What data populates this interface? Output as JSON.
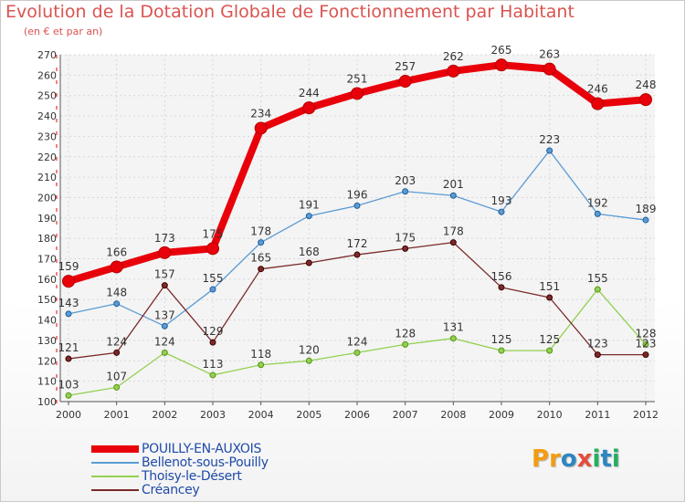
{
  "title": "Evolution de la Dotation Globale de Fonctionnement par Habitant",
  "subtitle": "(en € et par an)",
  "logo": {
    "text": "Proxiti",
    "letters": [
      {
        "ch": "P",
        "color": "#f39c12"
      },
      {
        "ch": "r",
        "color": "#f39c12"
      },
      {
        "ch": "o",
        "color": "#2e86c1"
      },
      {
        "ch": "x",
        "color": "#e74c3c"
      },
      {
        "ch": "i",
        "color": "#27ae60"
      },
      {
        "ch": "t",
        "color": "#2e86c1"
      },
      {
        "ch": "i",
        "color": "#27ae60"
      }
    ]
  },
  "chart_data": {
    "type": "line",
    "title": "Evolution de la Dotation Globale de Fonctionnement par Habitant",
    "subtitle": "(en € et par an)",
    "xlabel": "",
    "ylabel": "",
    "categories": [
      "2000",
      "2001",
      "2002",
      "2003",
      "2004",
      "2005",
      "2006",
      "2007",
      "2008",
      "2009",
      "2010",
      "2011",
      "2012"
    ],
    "ylim": [
      100,
      270
    ],
    "yticks": [
      100,
      110,
      120,
      130,
      140,
      150,
      160,
      170,
      180,
      190,
      200,
      210,
      220,
      230,
      240,
      250,
      260,
      270
    ],
    "grid": true,
    "legend_position": "bottom-left",
    "series": [
      {
        "name": "POUILLY-EN-AUXOIS",
        "color": "#e8000b",
        "emphasis": true,
        "values": [
          159,
          166,
          173,
          175,
          234,
          244,
          251,
          257,
          262,
          265,
          263,
          246,
          248
        ]
      },
      {
        "name": "Bellenot-sous-Pouilly",
        "color": "#5b9bd5",
        "emphasis": false,
        "values": [
          143,
          148,
          137,
          155,
          178,
          191,
          196,
          203,
          201,
          193,
          223,
          192,
          189
        ]
      },
      {
        "name": "Thoisy-le-Désert",
        "color": "#92d050",
        "emphasis": false,
        "values": [
          103,
          107,
          124,
          113,
          118,
          120,
          124,
          128,
          131,
          125,
          125,
          155,
          128
        ]
      },
      {
        "name": "Créancey",
        "color": "#7b2a2a",
        "emphasis": false,
        "values": [
          121,
          124,
          157,
          129,
          165,
          168,
          172,
          175,
          178,
          156,
          151,
          123,
          123
        ]
      }
    ]
  }
}
